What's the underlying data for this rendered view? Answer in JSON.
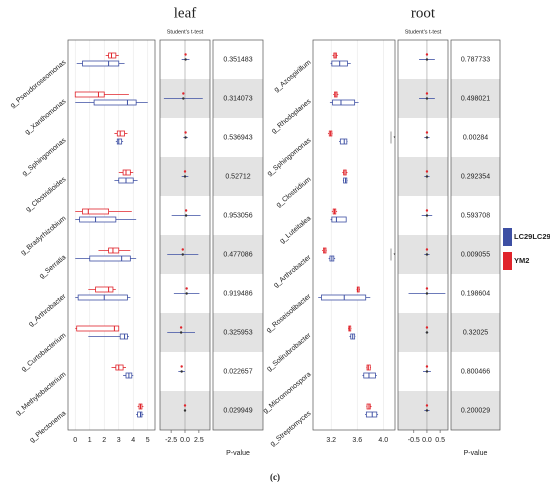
{
  "caption": "(c)",
  "legend": [
    {
      "name": "LC29LC29",
      "color": "#3d4fa3"
    },
    {
      "name": "YM2",
      "color": "#e0242b"
    }
  ],
  "chart_data": [
    {
      "type": "box",
      "title": "leaf",
      "subtitle": "Student's t-test",
      "categories": [
        "g_Pseudoroseomonas",
        "g_Xanthomonas",
        "g_Sphingomonas",
        "g_Clostridioides",
        "g_Bradyrhizobium",
        "g_Serratia",
        "g_Arthrobacter",
        "g_Curtobacterium",
        "g_Methylobacterium",
        "g_Plectonema"
      ],
      "series": [
        {
          "low": [
            0.1,
            0,
            2.8,
            2.7,
            0,
            0,
            0,
            0.9,
            3.3,
            4.2
          ],
          "q1": [
            0.5,
            1.3,
            2.9,
            3.0,
            0.3,
            1.0,
            0.2,
            3.1,
            3.5,
            4.3
          ],
          "median": [
            2.3,
            3.6,
            3.0,
            3.5,
            1.4,
            3.2,
            2.0,
            3.4,
            3.7,
            4.5
          ],
          "q3": [
            3.0,
            4.2,
            3.2,
            4.0,
            2.8,
            3.8,
            3.6,
            3.6,
            3.9,
            4.6
          ],
          "high": [
            3.4,
            5.0,
            3.3,
            4.3,
            4.2,
            4.2,
            3.8,
            3.7,
            4.0,
            4.7
          ]
        },
        {
          "low": [
            2.1,
            0,
            2.7,
            3.0,
            0,
            1.6,
            0.9,
            0,
            2.5,
            4.3
          ],
          "q1": [
            2.3,
            0,
            2.9,
            3.3,
            0.5,
            2.3,
            1.4,
            0.1,
            2.8,
            4.4
          ],
          "median": [
            2.5,
            1.6,
            3.1,
            3.5,
            0.9,
            2.6,
            2.3,
            2.7,
            3.0,
            4.5
          ],
          "q3": [
            2.8,
            2.0,
            3.4,
            3.8,
            2.3,
            3.0,
            2.6,
            3.0,
            3.3,
            4.6
          ],
          "high": [
            3.0,
            3.7,
            3.6,
            4.0,
            3.9,
            3.8,
            2.8,
            3.0,
            3.5,
            4.7
          ]
        }
      ],
      "xlim": [
        -0.5,
        5.5
      ],
      "xticks": [
        0,
        1,
        2,
        3,
        4,
        5
      ],
      "effect": {
        "xlim": [
          -4.5,
          4.5
        ],
        "xticks": [
          -2.5,
          {
            "value": 0,
            "label": "0.0"
          },
          2.5
        ],
        "color": "#e0242b",
        "values": [
          0.1,
          -0.3,
          0.1,
          0,
          0.2,
          -0.4,
          0.3,
          -0.7,
          -0.6,
          0
        ],
        "lower": [
          -0.6,
          -3.8,
          -0.3,
          -0.6,
          -2.4,
          -3.2,
          -2.0,
          -3.2,
          -1.2,
          -0.1
        ],
        "upper": [
          0.8,
          3.2,
          0.5,
          0.6,
          2.8,
          2.4,
          2.6,
          1.8,
          0,
          0.1
        ]
      },
      "p_values": [
        0.351483,
        0.314073,
        0.536943,
        0.52712,
        0.953056,
        0.477086,
        0.919486,
        0.325953,
        0.022657,
        0.029949
      ],
      "p_label": "P-value"
    },
    {
      "type": "box",
      "title": "root",
      "subtitle": "Student's t-test",
      "categories": [
        "g_Azospirillum",
        "g_Rhodoplanes",
        "g_Sphingomonas",
        "g_Clostridium",
        "g_Luteitalea",
        "g_Arthrobacter",
        "g_Roseisolibacter",
        "g_Solirubrobacter",
        "g_Micromonospora",
        "g_Streptomyces"
      ],
      "series": [
        {
          "low": [
            3.19,
            3.18,
            3.32,
            3.38,
            3.19,
            3.16,
            3.0,
            3.48,
            3.68,
            3.72
          ],
          "q1": [
            3.21,
            3.22,
            3.34,
            3.39,
            3.21,
            3.18,
            3.05,
            3.5,
            3.7,
            3.74
          ],
          "median": [
            3.33,
            3.35,
            3.4,
            3.42,
            3.28,
            3.21,
            3.4,
            3.53,
            3.78,
            3.83
          ],
          "q3": [
            3.45,
            3.56,
            3.44,
            3.44,
            3.43,
            3.24,
            3.73,
            3.56,
            3.88,
            3.9
          ],
          "high": [
            3.5,
            3.62,
            3.45,
            3.45,
            3.43,
            3.26,
            3.8,
            3.57,
            3.9,
            3.92
          ]
        },
        {
          "low": [
            3.22,
            3.23,
            3.15,
            3.37,
            3.21,
            3.06,
            3.59,
            3.46,
            3.74,
            3.74
          ],
          "q1": [
            3.24,
            3.25,
            3.17,
            3.39,
            3.23,
            3.08,
            3.6,
            3.47,
            3.75,
            3.75
          ],
          "median": [
            3.26,
            3.27,
            3.19,
            3.41,
            3.25,
            3.1,
            3.61,
            3.48,
            3.77,
            3.78
          ],
          "q3": [
            3.28,
            3.29,
            3.21,
            3.43,
            3.27,
            3.12,
            3.63,
            3.5,
            3.8,
            3.8
          ],
          "high": [
            3.3,
            3.31,
            3.22,
            3.45,
            3.29,
            3.13,
            3.64,
            3.51,
            3.81,
            3.82
          ]
        }
      ],
      "xlim": [
        2.92,
        4.18
      ],
      "xticks": [
        3.2,
        3.6,
        {
          "value": 4,
          "label": "4.0"
        }
      ],
      "marks": [
        {
          "category": "g_Sphingomonas",
          "label": "*"
        },
        {
          "category": "g_Arthrobacter",
          "label": "*"
        }
      ],
      "effect": {
        "xlim": [
          -1.1,
          0.8
        ],
        "xticks": [
          -0.5,
          {
            "value": 0,
            "label": "0.0"
          },
          0.5
        ],
        "color": "#e0242b",
        "values": [
          0,
          0,
          0,
          0,
          0,
          0,
          0,
          0,
          0,
          0
        ],
        "lower": [
          -0.3,
          -0.3,
          -0.1,
          -0.1,
          -0.2,
          -0.1,
          -0.7,
          -0.05,
          -0.15,
          -0.1
        ],
        "upper": [
          0.3,
          0.3,
          0.1,
          0.1,
          0.2,
          0.1,
          0.7,
          0.05,
          0.15,
          0.1
        ]
      },
      "p_values": [
        0.787733,
        0.498021,
        0.00284,
        0.292354,
        0.593708,
        0.009055,
        0.198604,
        0.32025,
        0.800466,
        0.200029
      ],
      "p_label": "P-value"
    }
  ]
}
